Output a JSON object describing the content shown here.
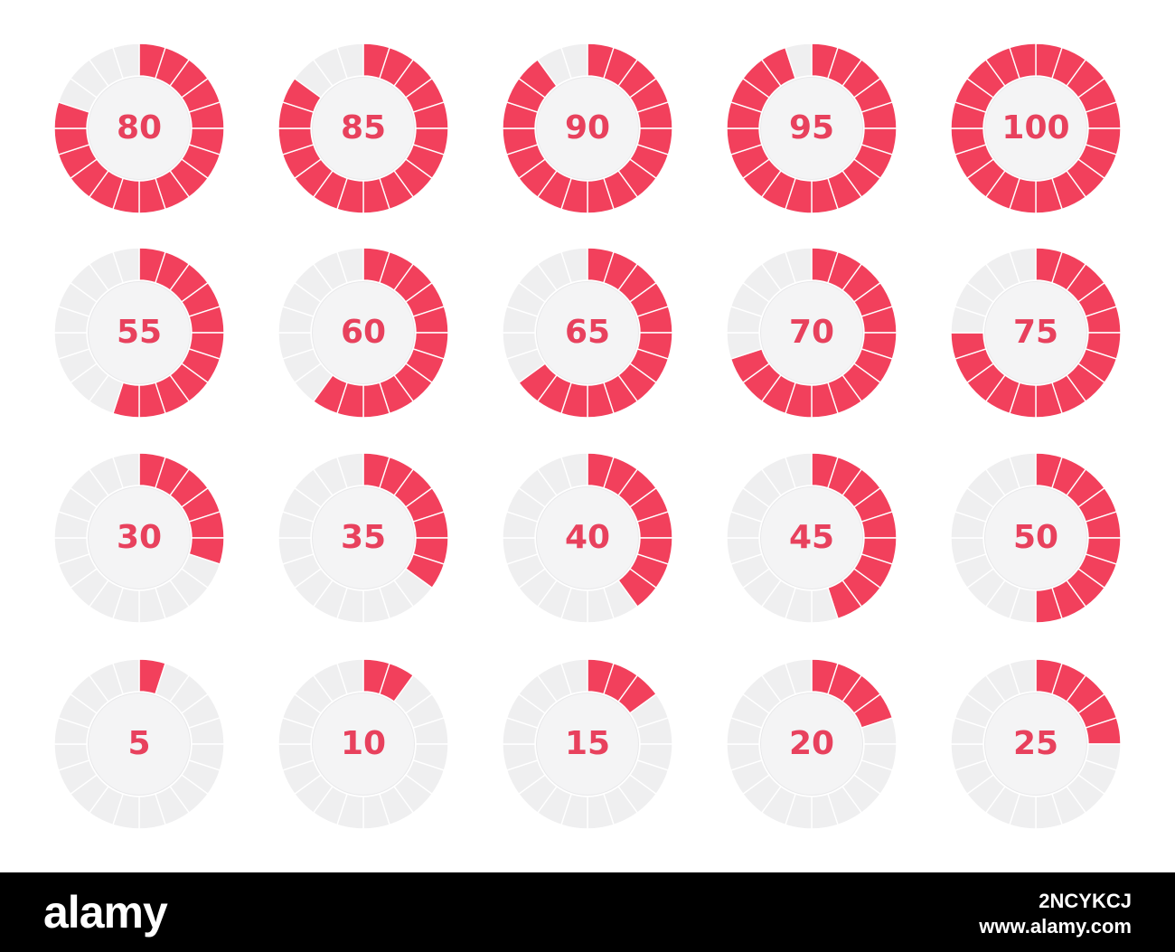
{
  "colors": {
    "accent": "#f2405c",
    "track": "#efeff0",
    "divider": "#ffffff",
    "inner": "#f4f4f5",
    "text": "#e8415d",
    "bar": "#000000"
  },
  "segments_per_ring": 20,
  "rings": [
    {
      "label": "80",
      "value": 80
    },
    {
      "label": "85",
      "value": 85
    },
    {
      "label": "90",
      "value": 90
    },
    {
      "label": "95",
      "value": 95
    },
    {
      "label": "100",
      "value": 100
    },
    {
      "label": "55",
      "value": 55
    },
    {
      "label": "60",
      "value": 60
    },
    {
      "label": "65",
      "value": 65
    },
    {
      "label": "70",
      "value": 70
    },
    {
      "label": "75",
      "value": 75
    },
    {
      "label": "30",
      "value": 30
    },
    {
      "label": "35",
      "value": 35
    },
    {
      "label": "40",
      "value": 40
    },
    {
      "label": "45",
      "value": 45
    },
    {
      "label": "50",
      "value": 50
    },
    {
      "label": "5",
      "value": 5
    },
    {
      "label": "10",
      "value": 10
    },
    {
      "label": "15",
      "value": 15
    },
    {
      "label": "20",
      "value": 20
    },
    {
      "label": "25",
      "value": 25
    }
  ],
  "watermark": {
    "logo": "alamy",
    "image_id": "2NCYKCJ",
    "site": "www.alamy.com"
  }
}
